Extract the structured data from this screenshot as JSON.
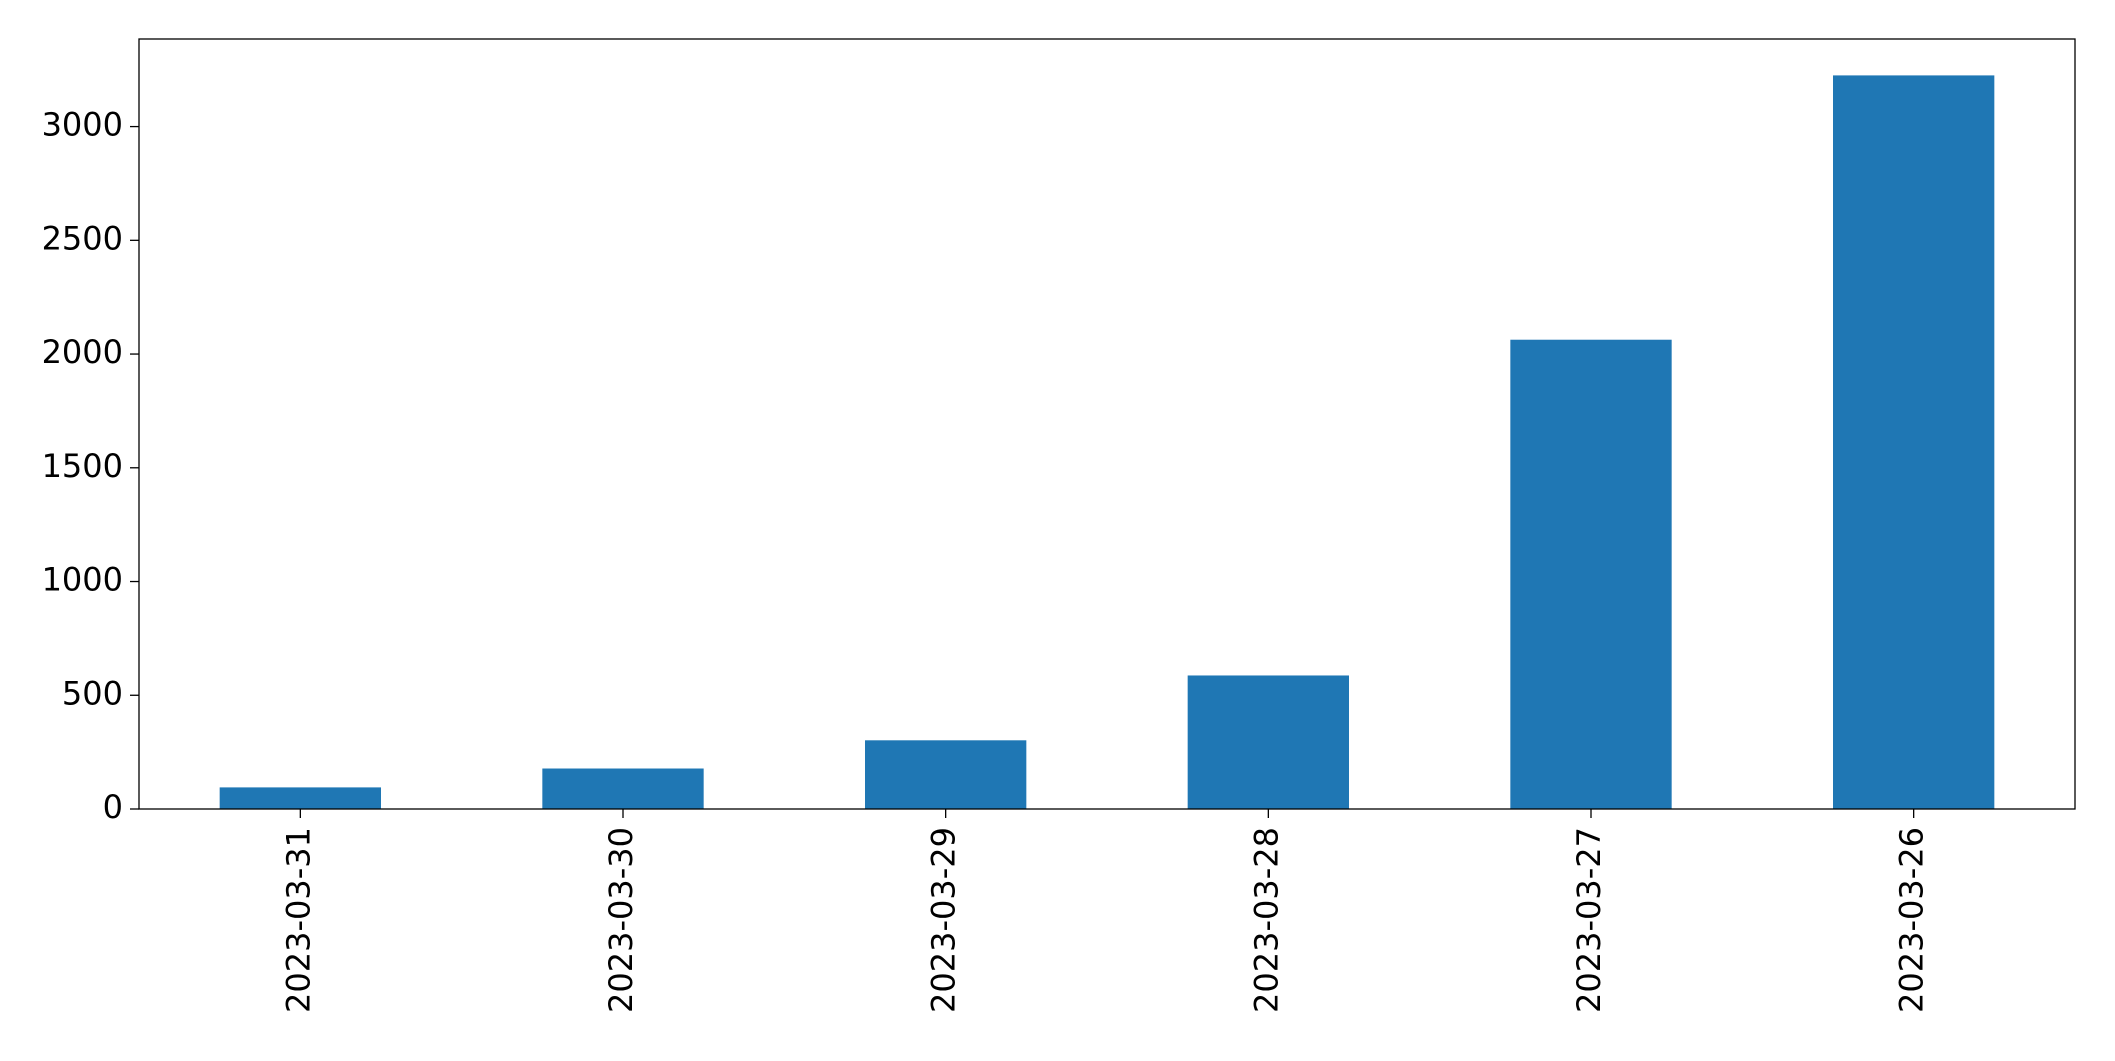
{
  "chart_data": {
    "type": "bar",
    "categories": [
      "2023-03-31",
      "2023-03-30",
      "2023-03-29",
      "2023-03-28",
      "2023-03-27",
      "2023-03-26"
    ],
    "values": [
      95,
      178,
      302,
      587,
      2063,
      3225
    ],
    "color": "#1f77b4",
    "ylim": [
      0,
      3385
    ],
    "yticks": [
      0,
      500,
      1000,
      1500,
      2000,
      2500,
      3000
    ],
    "grid": false
  }
}
